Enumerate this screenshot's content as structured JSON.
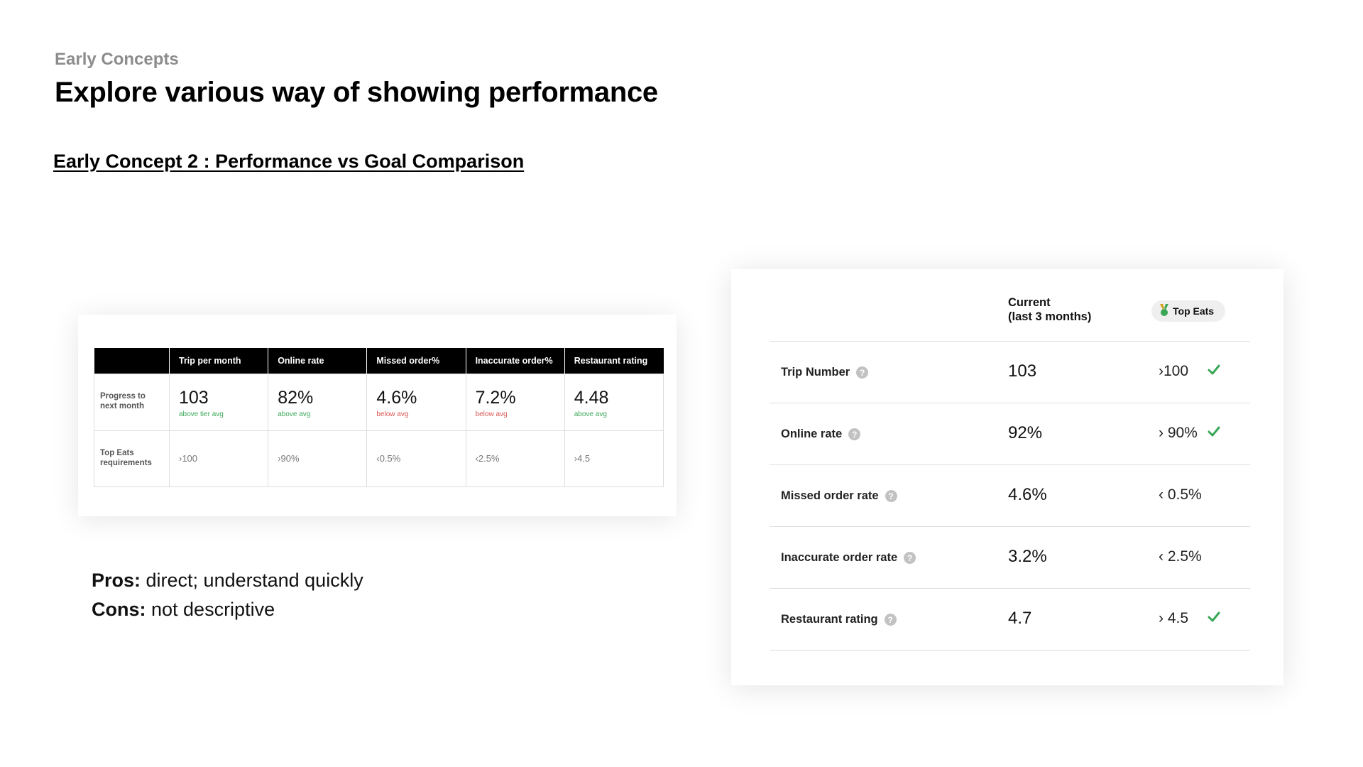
{
  "header": {
    "eyebrow": "Early Concepts",
    "title": "Explore various way of showing performance",
    "subtitle": "Early Concept 2 : Performance vs Goal Comparison"
  },
  "concept_table": {
    "columns": [
      "Trip per month",
      "Online rate",
      "Missed order%",
      "Inaccurate order%",
      "Restaurant rating"
    ],
    "progress_label": "Progress to next month",
    "progress": [
      {
        "value": "103",
        "note": "above tier avg",
        "status": "good"
      },
      {
        "value": "82%",
        "note": "above avg",
        "status": "good"
      },
      {
        "value": "4.6%",
        "note": "below avg",
        "status": "bad"
      },
      {
        "value": "7.2%",
        "note": "below avg",
        "status": "bad"
      },
      {
        "value": "4.48",
        "note": "above avg",
        "status": "good"
      }
    ],
    "requirements_label": "Top Eats requirements",
    "requirements": [
      "›100",
      "›90%",
      "‹0.5%",
      "‹2.5%",
      "›4.5"
    ]
  },
  "pros_cons": {
    "pros_label": "Pros:",
    "pros_text": " direct; understand quickly",
    "cons_label": "Cons:",
    "cons_text": " not descriptive"
  },
  "comparison_card": {
    "current_header_line1": "Current",
    "current_header_line2": "(last 3 months)",
    "badge_label": "Top Eats",
    "badge_icon": "medal-icon",
    "help_glyph": "?",
    "rows": [
      {
        "label": "Trip Number",
        "current": "103",
        "goal": "›100",
        "met": true
      },
      {
        "label": "Online rate",
        "current": "92%",
        "goal": "› 90%",
        "met": true
      },
      {
        "label": "Missed order rate",
        "current": "4.6%",
        "goal": "‹ 0.5%",
        "met": false
      },
      {
        "label": "Inaccurate order rate",
        "current": "3.2%",
        "goal": "‹ 2.5%",
        "met": false
      },
      {
        "label": "Restaurant rating",
        "current": "4.7",
        "goal": "› 4.5",
        "met": true
      }
    ]
  },
  "colors": {
    "good": "#3aa757",
    "bad": "#d9534f",
    "check": "#3aa757",
    "header_bg": "#000000"
  }
}
